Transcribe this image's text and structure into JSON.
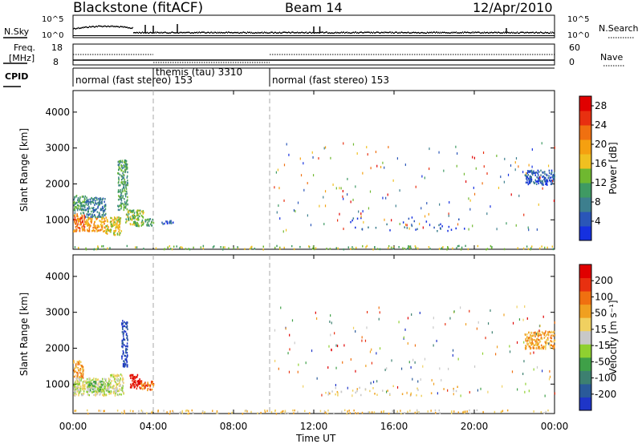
{
  "header": {
    "station": "Blackstone (fitACF)",
    "beam": "Beam 14",
    "date": "12/Apr/2010"
  },
  "panels": {
    "nsky_label": "N.Sky",
    "nsearch_label": "N.Search",
    "freq_label_1": "Freq.",
    "freq_label_2": "[MHz]",
    "nave_label": "Nave",
    "cpid_label": "CPID",
    "nsky_ticks": [
      "10^5",
      "10^0"
    ],
    "freq_ticks": [
      "18",
      "8"
    ],
    "nsearch_ticks": [
      "10^5",
      "10^0"
    ],
    "nave_ticks": [
      "60",
      "0"
    ]
  },
  "cpid_segments": [
    {
      "start_hour": 0.0,
      "label": "normal (fast stereo) 153"
    },
    {
      "start_hour": 4.0,
      "label": "themis (tau) 3310"
    },
    {
      "start_hour": 9.8,
      "label": "normal (fast stereo) 153"
    }
  ],
  "chart_data": [
    {
      "type": "heatmap",
      "title": "",
      "xlabel": "Time UT",
      "ylabel": "Slant Range [km]",
      "xlim_hours": [
        0,
        24
      ],
      "ylim": [
        180,
        4600
      ],
      "x_tick_labels": [
        "00:00",
        "04:00",
        "08:00",
        "12:00",
        "16:00",
        "20:00",
        "00:00"
      ],
      "x_tick_hours": [
        0,
        4,
        8,
        12,
        16,
        20,
        24
      ],
      "y_ticks": [
        1000,
        2000,
        3000,
        4000
      ],
      "mode_change_hours": [
        4.0,
        9.8
      ],
      "colorbar": {
        "label": "Power [dB]",
        "ticks": [
          "4",
          "8",
          "12",
          "16",
          "20",
          "24",
          "28"
        ],
        "colors": [
          "#1530e0",
          "#2a56b8",
          "#3d7f8e",
          "#3f9a63",
          "#6fb830",
          "#f0c020",
          "#f5a010",
          "#f07010",
          "#e83010",
          "#e00000"
        ]
      },
      "scatter_regions": [
        {
          "t0": 0.0,
          "t1": 0.6,
          "r0": 700,
          "r1": 1200,
          "level": 7
        },
        {
          "t0": 0.0,
          "t1": 0.6,
          "r0": 1200,
          "r1": 1700,
          "level": 3
        },
        {
          "t0": 0.6,
          "t1": 1.6,
          "r0": 700,
          "r1": 1100,
          "level": 6
        },
        {
          "t0": 0.6,
          "t1": 1.6,
          "r0": 1100,
          "r1": 1650,
          "level": 2
        },
        {
          "t0": 1.6,
          "t1": 2.4,
          "r0": 600,
          "r1": 1100,
          "level": 5
        },
        {
          "t0": 2.2,
          "t1": 2.7,
          "r0": 1300,
          "r1": 2700,
          "level": 3
        },
        {
          "t0": 2.6,
          "t1": 3.5,
          "r0": 850,
          "r1": 1300,
          "level": 4
        },
        {
          "t0": 3.5,
          "t1": 4.0,
          "r0": 850,
          "r1": 1050,
          "level": 3
        },
        {
          "t0": 4.4,
          "t1": 5.0,
          "r0": 900,
          "r1": 1000,
          "level": 1
        },
        {
          "t0": 13.8,
          "t1": 19.5,
          "r0": 700,
          "r1": 1100,
          "level": 1
        },
        {
          "t0": 22.5,
          "t1": 24.0,
          "r0": 2000,
          "r1": 2400,
          "level": 1
        },
        {
          "t0": 0.0,
          "t1": 24.0,
          "r0": 200,
          "r1": 300,
          "level": 4
        }
      ]
    },
    {
      "type": "heatmap",
      "title": "",
      "xlabel": "Time UT",
      "ylabel": "Slant Range [km]",
      "xlim_hours": [
        0,
        24
      ],
      "ylim": [
        180,
        4600
      ],
      "x_tick_labels": [
        "00:00",
        "04:00",
        "08:00",
        "12:00",
        "16:00",
        "20:00",
        "00:00"
      ],
      "x_tick_hours": [
        0,
        4,
        8,
        12,
        16,
        20,
        24
      ],
      "y_ticks": [
        1000,
        2000,
        3000,
        4000
      ],
      "mode_change_hours": [
        4.0,
        9.8
      ],
      "colorbar": {
        "label": "Velocity [m s⁻¹]",
        "ticks": [
          "200",
          "100",
          "50",
          "15",
          "-15",
          "-50",
          "-100",
          "-200"
        ],
        "colors": [
          "#1e35c8",
          "#2a5a9a",
          "#3d8070",
          "#3fa048",
          "#8fd030",
          "#c8c8c8",
          "#f0d060",
          "#f0a020",
          "#f07010",
          "#e83010",
          "#e00000"
        ]
      },
      "scatter_regions": [
        {
          "t0": 0.0,
          "t1": 0.5,
          "r0": 1200,
          "r1": 1700,
          "level": 7
        },
        {
          "t0": 0.0,
          "t1": 1.8,
          "r0": 700,
          "r1": 1200,
          "level": 5
        },
        {
          "t0": 0.7,
          "t1": 1.8,
          "r0": 800,
          "r1": 1100,
          "level": 4
        },
        {
          "t0": 1.8,
          "t1": 2.5,
          "r0": 700,
          "r1": 1300,
          "level": 5
        },
        {
          "t0": 2.4,
          "t1": 2.7,
          "r0": 1500,
          "r1": 2800,
          "level": 0
        },
        {
          "t0": 2.8,
          "t1": 3.4,
          "r0": 900,
          "r1": 1300,
          "level": 10
        },
        {
          "t0": 3.3,
          "t1": 4.0,
          "r0": 850,
          "r1": 1100,
          "level": 8
        },
        {
          "t0": 12.5,
          "t1": 19.5,
          "r0": 700,
          "r1": 1000,
          "level": 6
        },
        {
          "t0": 22.5,
          "t1": 24.0,
          "r0": 2000,
          "r1": 2500,
          "level": 7
        },
        {
          "t0": 0.0,
          "t1": 24.0,
          "r0": 200,
          "r1": 300,
          "level": 6
        }
      ]
    }
  ]
}
